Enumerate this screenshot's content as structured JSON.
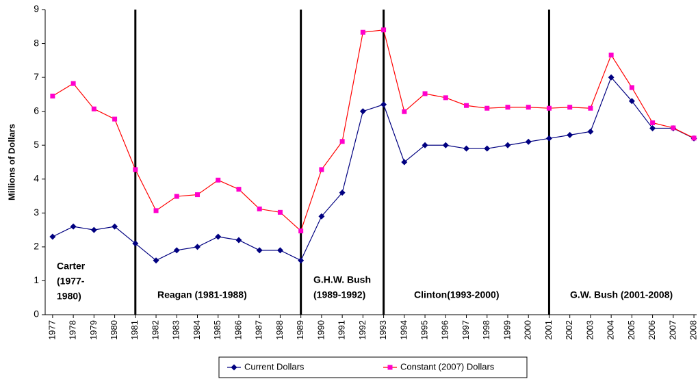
{
  "chart_data": {
    "type": "line",
    "y_label": "Millions of Dollars",
    "x": [
      1977,
      1978,
      1979,
      1980,
      1981,
      1982,
      1983,
      1984,
      1985,
      1986,
      1987,
      1988,
      1989,
      1990,
      1991,
      1992,
      1993,
      1994,
      1995,
      1996,
      1997,
      1998,
      1999,
      2000,
      2001,
      2002,
      2003,
      2004,
      2005,
      2006,
      2007,
      2008
    ],
    "xlim": [
      1976.64,
      2008.13
    ],
    "xticks": [
      1977,
      1978,
      1979,
      1980,
      1981,
      1982,
      1983,
      1984,
      1985,
      1986,
      1987,
      1988,
      1989,
      1990,
      1991,
      1992,
      1993,
      1994,
      1995,
      1996,
      1997,
      1998,
      1999,
      2000,
      2001,
      2002,
      2003,
      2004,
      2005,
      2006,
      2007,
      2008
    ],
    "ylim": [
      0,
      9
    ],
    "yticks": [
      0,
      1,
      2,
      3,
      4,
      5,
      6,
      7,
      8,
      9
    ],
    "grid": false,
    "legend": "bottom",
    "dividers": [
      1981,
      1989,
      1993,
      2001
    ],
    "series": [
      {
        "name": "Current Dollars",
        "color": "#000080",
        "marker": "diamond",
        "marker_color": "#000080",
        "values": [
          2.3,
          2.6,
          2.5,
          2.6,
          2.1,
          1.6,
          1.9,
          2.0,
          2.3,
          2.2,
          1.9,
          1.9,
          1.6,
          2.9,
          3.6,
          6.0,
          6.2,
          4.5,
          5.0,
          5.0,
          4.9,
          4.9,
          5.0,
          5.1,
          5.2,
          5.3,
          5.4,
          7.0,
          6.3,
          5.5,
          5.5,
          5.2
        ]
      },
      {
        "name": "Constant (2007) Dollars",
        "color": "#ff0000",
        "marker": "square",
        "marker_color": "#ff00cc",
        "values": [
          6.45,
          6.82,
          6.07,
          5.77,
          4.28,
          3.07,
          3.49,
          3.54,
          3.97,
          3.7,
          3.12,
          3.02,
          2.47,
          4.28,
          5.11,
          8.33,
          8.4,
          5.99,
          6.52,
          6.4,
          6.17,
          6.09,
          6.12,
          6.12,
          6.09,
          6.12,
          6.09,
          7.66,
          6.7,
          5.66,
          5.51,
          5.21
        ]
      }
    ],
    "annotations": [
      [
        "Carter",
        "(1977-",
        "1980)"
      ],
      [
        "Reagan (1981-1988)"
      ],
      [
        "G.H.W. Bush",
        "(1989-1992)"
      ],
      [
        "Clinton(1993-2000)"
      ],
      [
        "G.W. Bush (2001-2008)"
      ]
    ]
  }
}
